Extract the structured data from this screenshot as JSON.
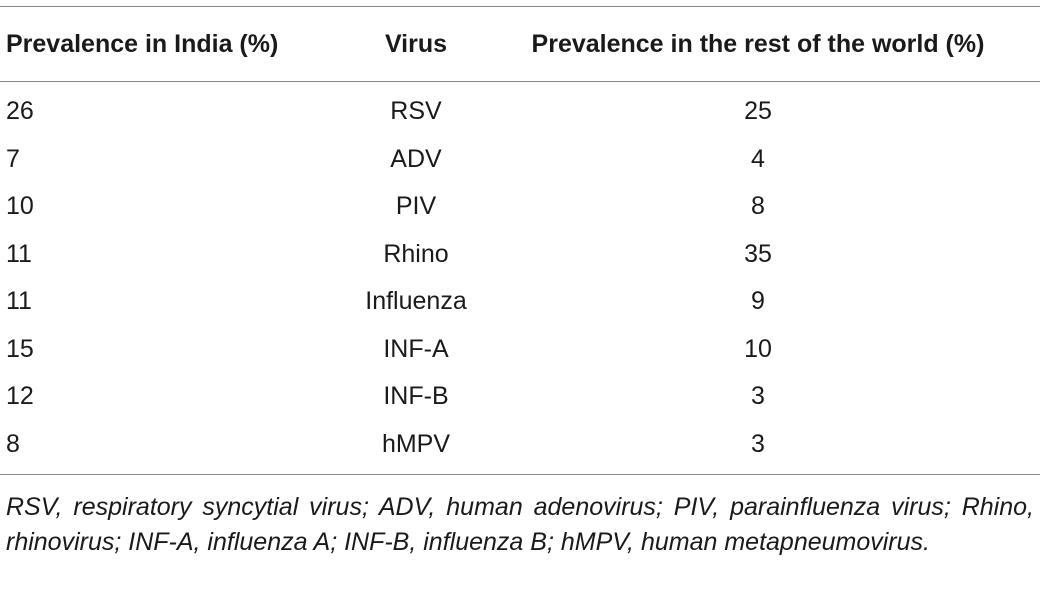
{
  "table": {
    "headers": [
      "Prevalence in India (%)",
      "Virus",
      "Prevalence in the rest of the world (%)"
    ],
    "rows": [
      [
        "26",
        "RSV",
        "25"
      ],
      [
        "7",
        "ADV",
        "4"
      ],
      [
        "10",
        "PIV",
        "8"
      ],
      [
        "11",
        "Rhino",
        "35"
      ],
      [
        "11",
        "Influenza",
        "9"
      ],
      [
        "15",
        "INF-A",
        "10"
      ],
      [
        "12",
        "INF-B",
        "3"
      ],
      [
        "8",
        "hMPV",
        "3"
      ]
    ]
  },
  "footnote": "RSV, respiratory syncytial virus; ADV, human adenovirus; PIV, parainfluenza virus; Rhino, rhinovirus; INF-A, influenza A; INF-B, influenza B; hMPV, human metapneumovirus."
}
